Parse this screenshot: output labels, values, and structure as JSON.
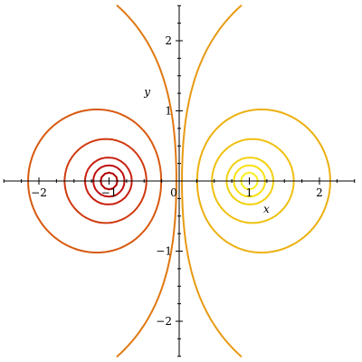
{
  "chart_data": {
    "type": "contour",
    "title": "",
    "xlabel": "x",
    "ylabel": "y",
    "xlim": [
      -2.5,
      2.5
    ],
    "ylim": [
      -2.5,
      2.5
    ],
    "x_ticks": [
      -2,
      -1,
      0,
      1,
      2
    ],
    "x_tick_labels": [
      "−2",
      "−1",
      "0",
      "1",
      "2"
    ],
    "y_ticks": [
      -2,
      -1,
      1,
      2
    ],
    "y_tick_labels": [
      "−2",
      "−1",
      "1",
      "2"
    ],
    "grid": false,
    "sources": [
      {
        "x": -1,
        "y": 0
      },
      {
        "x": 1,
        "y": 0
      }
    ],
    "levels": [
      -8,
      -4,
      -2.5,
      -1.2,
      -0.55,
      -0.08,
      0.08,
      0.55,
      1.2,
      2.5,
      4,
      8
    ],
    "level_colors": [
      "#b00000",
      "#c01010",
      "#c82010",
      "#d03a10",
      "#d85a10",
      "#e07810",
      "#e79a12",
      "#ecb010",
      "#efc010",
      "#f3d010",
      "#f7e010",
      "#fbee20"
    ]
  }
}
